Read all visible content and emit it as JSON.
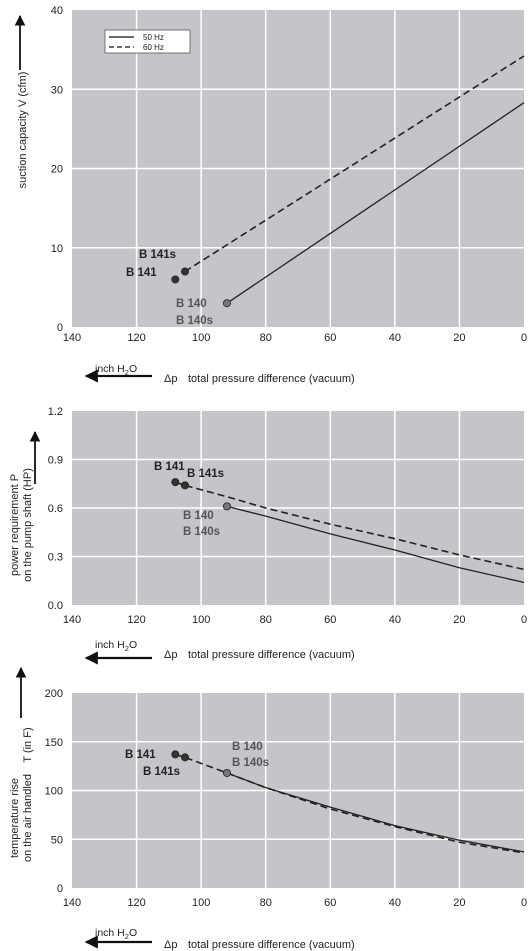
{
  "legend": {
    "items": [
      {
        "label": "50 Hz",
        "style": "solid"
      },
      {
        "label": "60 Hz",
        "style": "dashed"
      }
    ]
  },
  "x_axis": {
    "label": "total pressure difference (vacuum)",
    "symbol": "Δp",
    "unit_text": "inch H",
    "unit_sub": "2",
    "unit_tail": "O",
    "ticks": [
      "140",
      "120",
      "100",
      "80",
      "60",
      "40",
      "20",
      "0"
    ]
  },
  "colors": {
    "plot_bg": "#c4c5c8",
    "grid": "#ffffff",
    "line": "#222222",
    "marker_dark": "#333333",
    "marker_gray": "#777777"
  },
  "chart_data": [
    {
      "type": "line",
      "ylabel": "suction capacity V (cfm)",
      "ylabel_line2": "",
      "ylabel_line3": "",
      "xlim": [
        140,
        0
      ],
      "ylim": [
        0,
        40
      ],
      "yticks": [
        "0",
        "10",
        "20",
        "30",
        "40"
      ],
      "ytick_values": [
        0,
        10,
        20,
        30,
        40
      ],
      "has_legend": true,
      "series": [
        {
          "name": "50 Hz",
          "style": "solid",
          "x": [
            92,
            0
          ],
          "y": [
            3,
            28.3
          ]
        },
        {
          "name": "60 Hz",
          "style": "dashed",
          "x": [
            105,
            0
          ],
          "y": [
            7,
            34.2
          ]
        }
      ],
      "annotations": [
        {
          "text": "B 141s",
          "tone": "dark"
        },
        {
          "text": "B 141",
          "tone": "dark"
        },
        {
          "text": "B 140",
          "tone": "gray"
        },
        {
          "text": "B 140s",
          "tone": "gray"
        }
      ],
      "markers": [
        {
          "x": 108,
          "y": 6,
          "tone": "dark"
        },
        {
          "x": 105,
          "y": 7,
          "tone": "dark"
        },
        {
          "x": 92,
          "y": 3,
          "tone": "gray"
        }
      ]
    },
    {
      "type": "line",
      "ylabel": "power requirement P",
      "ylabel_line2": "on the pump shaft (HP)",
      "ylabel_line3": "",
      "xlim": [
        140,
        0
      ],
      "ylim": [
        0,
        1.2
      ],
      "yticks": [
        "0.0",
        "0.3",
        "0.6",
        "0.9",
        "1.2"
      ],
      "ytick_values": [
        0,
        0.3,
        0.6,
        0.9,
        1.2
      ],
      "has_legend": false,
      "series": [
        {
          "name": "50 Hz",
          "style": "solid",
          "x": [
            92,
            80,
            60,
            40,
            20,
            0
          ],
          "y": [
            0.61,
            0.55,
            0.44,
            0.34,
            0.23,
            0.14
          ]
        },
        {
          "name": "60 Hz",
          "style": "dashed",
          "x": [
            108,
            105,
            92,
            80,
            60,
            40,
            20,
            0
          ],
          "y": [
            0.76,
            0.74,
            0.67,
            0.6,
            0.5,
            0.41,
            0.31,
            0.22
          ]
        }
      ],
      "annotations": [
        {
          "text": "B 141",
          "tone": "dark"
        },
        {
          "text": "B 141s",
          "tone": "dark"
        },
        {
          "text": "B 140",
          "tone": "gray"
        },
        {
          "text": "B 140s",
          "tone": "gray"
        }
      ],
      "markers": [
        {
          "x": 108,
          "y": 0.76,
          "tone": "dark"
        },
        {
          "x": 105,
          "y": 0.74,
          "tone": "dark"
        },
        {
          "x": 92,
          "y": 0.61,
          "tone": "gray"
        }
      ]
    },
    {
      "type": "line",
      "ylabel": "temperature rise",
      "ylabel_line2": "on the air handled",
      "ylabel_line3": "T   (in F)",
      "xlim": [
        140,
        0
      ],
      "ylim": [
        0,
        200
      ],
      "yticks": [
        "0",
        "50",
        "100",
        "150",
        "200"
      ],
      "ytick_values": [
        0,
        50,
        100,
        150,
        200
      ],
      "has_legend": false,
      "series": [
        {
          "name": "50 Hz",
          "style": "solid",
          "x": [
            92,
            80,
            60,
            40,
            20,
            0
          ],
          "y": [
            118,
            103,
            83,
            64,
            49,
            37
          ]
        },
        {
          "name": "60 Hz",
          "style": "dashed",
          "x": [
            108,
            105,
            92,
            80,
            60,
            40,
            20,
            0
          ],
          "y": [
            137,
            134,
            118,
            103,
            81,
            63,
            47,
            36
          ]
        }
      ],
      "annotations": [
        {
          "text": "B 141",
          "tone": "dark"
        },
        {
          "text": "B 141s",
          "tone": "dark"
        },
        {
          "text": "B 140",
          "tone": "gray"
        },
        {
          "text": "B 140s",
          "tone": "gray"
        }
      ],
      "markers": [
        {
          "x": 108,
          "y": 137,
          "tone": "dark"
        },
        {
          "x": 105,
          "y": 134,
          "tone": "dark"
        },
        {
          "x": 92,
          "y": 118,
          "tone": "gray"
        }
      ]
    }
  ]
}
